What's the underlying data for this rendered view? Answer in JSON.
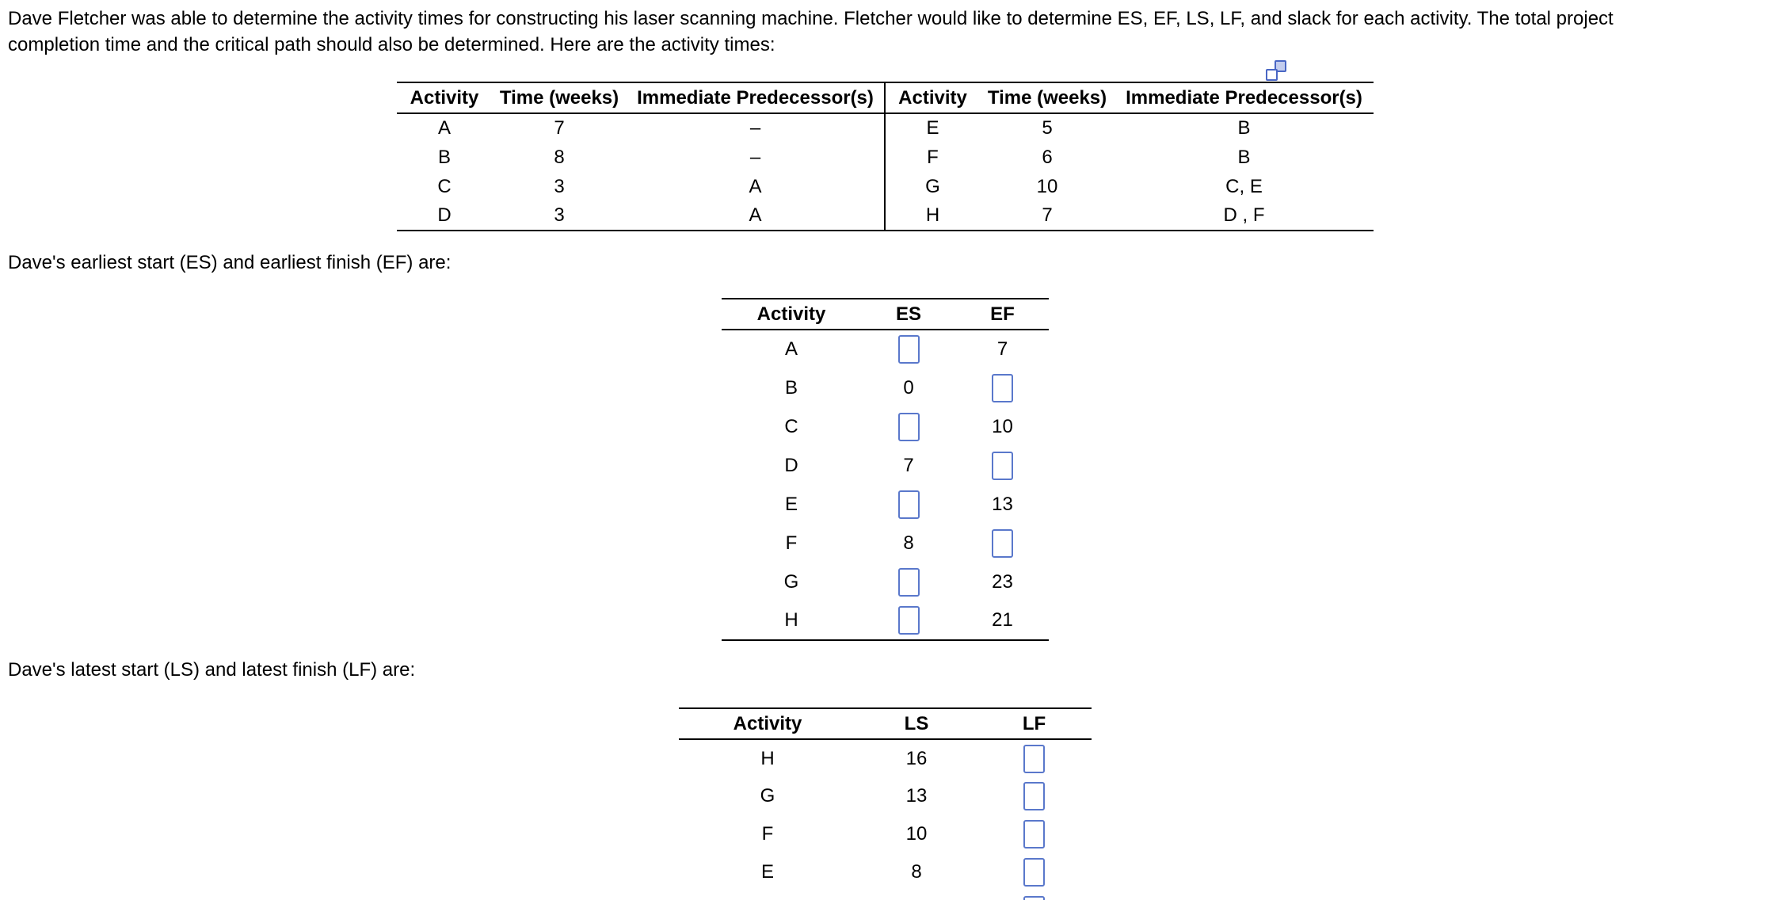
{
  "problem": {
    "lines": [
      "Dave Fletcher was able to determine the activity times for constructing his laser scanning machine. Fletcher would like to determine ES, EF, LS, LF, and slack for each activity. The total project",
      "completion time and the critical path should also be determined. Here are the activity times:"
    ]
  },
  "activity_table": {
    "headers": [
      "Activity",
      "Time (weeks)",
      "Immediate Predecessor(s)",
      "Activity",
      "Time (weeks)",
      "Immediate Predecessor(s)"
    ],
    "rows": [
      [
        "A",
        "7",
        "–",
        "E",
        "5",
        "B"
      ],
      [
        "B",
        "8",
        "–",
        "F",
        "6",
        "B"
      ],
      [
        "C",
        "3",
        "A",
        "G",
        "10",
        "C, E"
      ],
      [
        "D",
        "3",
        "A",
        "H",
        "7",
        "D , F"
      ]
    ]
  },
  "es_ef_section": {
    "intro": "Dave's earliest start (ES) and earliest finish (EF) are:",
    "headers": [
      "Activity",
      "ES",
      "EF"
    ],
    "rows": [
      {
        "activity": "A",
        "es": null,
        "ef": "7"
      },
      {
        "activity": "B",
        "es": "0",
        "ef": null
      },
      {
        "activity": "C",
        "es": null,
        "ef": "10"
      },
      {
        "activity": "D",
        "es": "7",
        "ef": null
      },
      {
        "activity": "E",
        "es": null,
        "ef": "13"
      },
      {
        "activity": "F",
        "es": "8",
        "ef": null
      },
      {
        "activity": "G",
        "es": null,
        "ef": "23"
      },
      {
        "activity": "H",
        "es": null,
        "ef": "21"
      }
    ]
  },
  "ls_lf_section": {
    "intro": "Dave's latest start (LS) and latest finish (LF) are:",
    "headers": [
      "Activity",
      "LS",
      "LF"
    ],
    "rows": [
      {
        "activity": "H",
        "ls": "16",
        "lf": null
      },
      {
        "activity": "G",
        "ls": "13",
        "lf": null
      },
      {
        "activity": "F",
        "ls": "10",
        "lf": null
      },
      {
        "activity": "E",
        "ls": "8",
        "lf": null
      }
    ],
    "partial_next_row": true
  }
}
